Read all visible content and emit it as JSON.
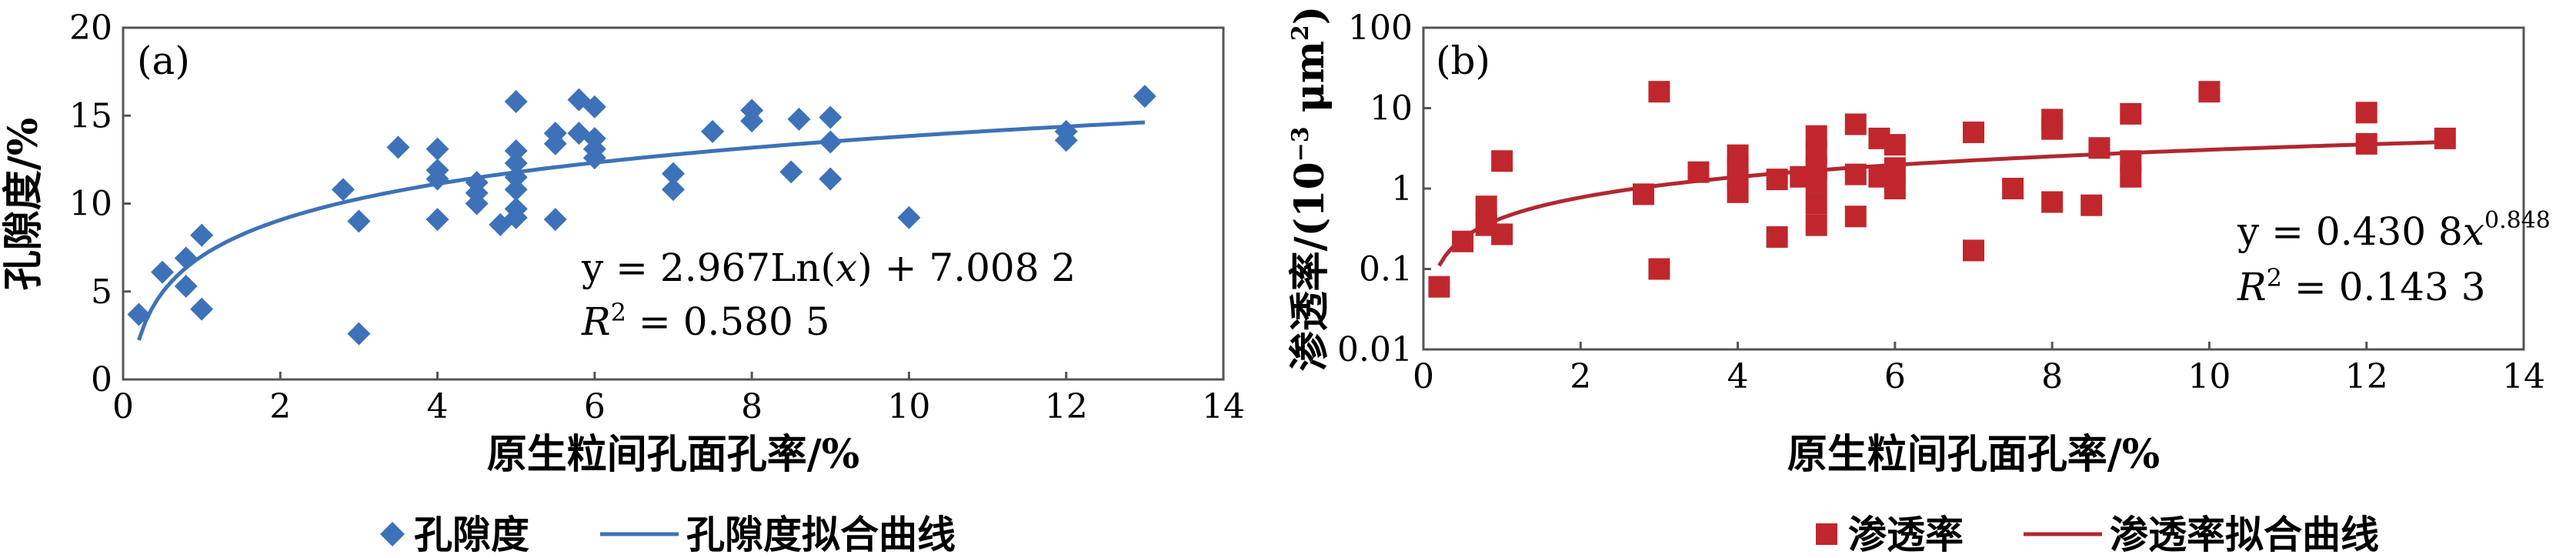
{
  "colors": {
    "panel_a_marker": "#3d72b8",
    "panel_a_curve": "#3d72b8",
    "panel_b_marker": "#c0272d",
    "panel_b_curve": "#b02830"
  },
  "chart_data": [
    {
      "type": "scatter",
      "panel_label": "(a)",
      "xlabel": "原生粒间孔面孔率/%",
      "ylabel": "孔隙度/%",
      "xlim": [
        0,
        14
      ],
      "ylim": [
        0,
        20
      ],
      "x_ticks": [
        "0",
        "2",
        "4",
        "6",
        "8",
        "10",
        "12",
        "14"
      ],
      "y_ticks": [
        "0",
        "5",
        "10",
        "15",
        "20"
      ],
      "y_scale": "linear",
      "marker": "diamond",
      "equation": "y = 2.967Ln(x) + 7.008 2",
      "equation_parts": {
        "lhs": "y = 2.967Ln(",
        "var": "x",
        "rhs": ") + 7.008 2"
      },
      "r2": {
        "label": "R",
        "sup": "2",
        "value": " = 0.580 5"
      },
      "legend": {
        "points": "孔隙度",
        "curve": "孔隙度拟合曲线"
      },
      "legend_position": "bottom",
      "fit": {
        "model": "log",
        "a": 2.967,
        "b": 7.0082,
        "x_range": [
          0.2,
          13
        ]
      },
      "series": [
        {
          "name": "孔隙度",
          "points": [
            [
              0.2,
              3.7
            ],
            [
              0.5,
              6.1
            ],
            [
              0.8,
              6.9
            ],
            [
              0.8,
              5.3
            ],
            [
              1.0,
              8.2
            ],
            [
              1.0,
              4.0
            ],
            [
              2.8,
              10.8
            ],
            [
              3.0,
              9.0
            ],
            [
              3.0,
              2.6
            ],
            [
              3.5,
              13.2
            ],
            [
              4.0,
              13.1
            ],
            [
              4.0,
              11.9
            ],
            [
              4.0,
              11.4
            ],
            [
              4.0,
              9.1
            ],
            [
              4.5,
              11.2
            ],
            [
              4.5,
              10.6
            ],
            [
              4.5,
              10.0
            ],
            [
              4.8,
              8.8
            ],
            [
              5.0,
              15.8
            ],
            [
              5.0,
              13.0
            ],
            [
              5.0,
              12.3
            ],
            [
              5.0,
              11.5
            ],
            [
              5.0,
              10.8
            ],
            [
              5.0,
              9.7
            ],
            [
              5.0,
              9.2
            ],
            [
              5.5,
              14.0
            ],
            [
              5.5,
              13.4
            ],
            [
              5.5,
              9.1
            ],
            [
              5.8,
              15.9
            ],
            [
              5.8,
              14.0
            ],
            [
              6.0,
              15.5
            ],
            [
              6.0,
              13.7
            ],
            [
              6.0,
              13.1
            ],
            [
              6.0,
              12.6
            ],
            [
              7.0,
              11.7
            ],
            [
              7.0,
              10.8
            ],
            [
              7.5,
              14.1
            ],
            [
              8.0,
              15.3
            ],
            [
              8.0,
              14.7
            ],
            [
              8.5,
              11.8
            ],
            [
              8.6,
              14.8
            ],
            [
              9.0,
              14.9
            ],
            [
              9.0,
              13.5
            ],
            [
              9.0,
              11.4
            ],
            [
              10.0,
              9.2
            ],
            [
              12.0,
              14.1
            ],
            [
              12.0,
              13.6
            ],
            [
              13.0,
              16.1
            ]
          ]
        }
      ]
    },
    {
      "type": "scatter",
      "panel_label": "(b)",
      "xlabel": "原生粒间孔面孔率/%",
      "ylabel_main": "渗透率/(10",
      "ylabel_sup1": "−3",
      "ylabel_mid": " μm",
      "ylabel_sup2": "2",
      "ylabel_end": ")",
      "xlim": [
        0,
        14
      ],
      "ylim": [
        0.01,
        100
      ],
      "x_ticks": [
        "0",
        "2",
        "4",
        "6",
        "8",
        "10",
        "12",
        "14"
      ],
      "y_ticks": [
        "0.01",
        "0.1",
        "1",
        "10",
        "100"
      ],
      "y_tick_values": [
        0.01,
        0.1,
        1,
        10,
        100
      ],
      "y_scale": "log",
      "marker": "square",
      "equation_parts": {
        "lhs": "y = 0.430 8",
        "var": "x",
        "exp": "0.848"
      },
      "r2": {
        "label": "R",
        "sup": "2",
        "value": " = 0.143 3"
      },
      "legend": {
        "points": "渗透率",
        "curve": "渗透率拟合曲线"
      },
      "legend_position": "bottom",
      "fit": {
        "model": "power",
        "a": 0.4308,
        "b": 0.848,
        "x_range": [
          0.2,
          13
        ]
      },
      "series": [
        {
          "name": "渗透率",
          "points": [
            [
              0.2,
              0.06
            ],
            [
              0.5,
              0.22
            ],
            [
              0.8,
              0.6
            ],
            [
              0.8,
              0.35
            ],
            [
              1.0,
              2.2
            ],
            [
              1.0,
              0.27
            ],
            [
              2.8,
              0.85
            ],
            [
              3.0,
              16
            ],
            [
              3.0,
              0.1
            ],
            [
              3.5,
              1.6
            ],
            [
              4.0,
              2.6
            ],
            [
              4.0,
              1.9
            ],
            [
              4.0,
              1.3
            ],
            [
              4.0,
              0.9
            ],
            [
              4.5,
              1.3
            ],
            [
              4.5,
              0.25
            ],
            [
              4.8,
              1.4
            ],
            [
              5.0,
              4.5
            ],
            [
              5.0,
              2.8
            ],
            [
              5.0,
              1.8
            ],
            [
              5.0,
              1.2
            ],
            [
              5.0,
              0.65
            ],
            [
              5.0,
              0.35
            ],
            [
              5.5,
              6.3
            ],
            [
              5.5,
              1.5
            ],
            [
              5.5,
              0.45
            ],
            [
              5.8,
              4.2
            ],
            [
              5.8,
              1.4
            ],
            [
              6.0,
              3.5
            ],
            [
              6.0,
              1.8
            ],
            [
              6.0,
              1.0
            ],
            [
              7.0,
              5.0
            ],
            [
              7.0,
              0.17
            ],
            [
              7.5,
              1.0
            ],
            [
              8.0,
              7.2
            ],
            [
              8.0,
              5.5
            ],
            [
              8.0,
              0.68
            ],
            [
              8.5,
              0.62
            ],
            [
              8.6,
              3.2
            ],
            [
              9.0,
              8.5
            ],
            [
              9.0,
              2.2
            ],
            [
              9.0,
              1.4
            ],
            [
              10.0,
              16
            ],
            [
              12.0,
              8.8
            ],
            [
              12.0,
              3.6
            ],
            [
              13.0,
              4.2
            ]
          ]
        }
      ]
    }
  ]
}
